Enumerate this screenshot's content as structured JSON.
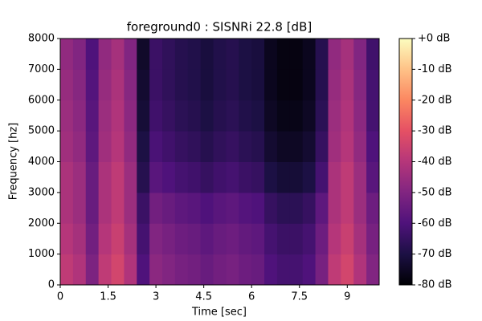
{
  "chart_data": {
    "type": "spectrogram",
    "title": "foreground0 : SISNRi 22.8 [dB]",
    "x_label": "Time [sec]",
    "y_label": "Frequency [hz]",
    "colormap": "magma",
    "time_bins": [
      0,
      0.4,
      0.8,
      1.2,
      1.6,
      2.0,
      2.4,
      2.8,
      3.2,
      3.6,
      4.0,
      4.4,
      4.8,
      5.2,
      5.6,
      6.0,
      6.4,
      6.8,
      7.2,
      7.6,
      8.0,
      8.4,
      8.8,
      9.2,
      9.6,
      10.0
    ],
    "freq_bins": [
      0,
      1000,
      2000,
      3000,
      4000,
      5000,
      6000,
      7000,
      8000
    ],
    "values": [
      [
        -38,
        -41,
        -51,
        -38,
        -34,
        -41,
        -60,
        -48,
        -50,
        -52,
        -53,
        -55,
        -53,
        -52,
        -54,
        -55,
        -60,
        -62,
        -62,
        -60,
        -52,
        -38,
        -34,
        -41,
        -50
      ],
      [
        -40,
        -43,
        -53,
        -40,
        -36,
        -43,
        -62,
        -50,
        -52,
        -54,
        -55,
        -57,
        -55,
        -54,
        -56,
        -57,
        -62,
        -64,
        -64,
        -62,
        -54,
        -40,
        -36,
        -43,
        -52
      ],
      [
        -42,
        -45,
        -55,
        -42,
        -38,
        -45,
        -64,
        -53,
        -55,
        -57,
        -58,
        -60,
        -58,
        -57,
        -59,
        -60,
        -65,
        -67,
        -67,
        -65,
        -57,
        -42,
        -38,
        -45,
        -54
      ],
      [
        -42,
        -45,
        -55,
        -42,
        -38,
        -45,
        -68,
        -58,
        -60,
        -62,
        -63,
        -65,
        -63,
        -62,
        -64,
        -65,
        -70,
        -72,
        -72,
        -70,
        -62,
        -42,
        -38,
        -45,
        -58
      ],
      [
        -44,
        -47,
        -57,
        -44,
        -40,
        -47,
        -70,
        -61,
        -63,
        -65,
        -66,
        -68,
        -66,
        -65,
        -67,
        -68,
        -73,
        -75,
        -75,
        -73,
        -65,
        -44,
        -40,
        -47,
        -60
      ],
      [
        -45,
        -48,
        -58,
        -45,
        -41,
        -48,
        -72,
        -63,
        -65,
        -67,
        -68,
        -70,
        -68,
        -67,
        -69,
        -70,
        -75,
        -77,
        -77,
        -75,
        -67,
        -45,
        -41,
        -48,
        -62
      ],
      [
        -46,
        -49,
        -59,
        -46,
        -42,
        -49,
        -73,
        -64,
        -66,
        -68,
        -69,
        -71,
        -69,
        -68,
        -70,
        -71,
        -76,
        -78,
        -78,
        -76,
        -68,
        -46,
        -42,
        -49,
        -62
      ],
      [
        -47,
        -50,
        -60,
        -47,
        -43,
        -50,
        -74,
        -64,
        -66,
        -68,
        -69,
        -71,
        -69,
        -68,
        -70,
        -71,
        -76,
        -78,
        -78,
        -76,
        -68,
        -47,
        -43,
        -50,
        -63
      ]
    ],
    "xlim": [
      0,
      10.0
    ],
    "xticks": [
      0,
      1.5,
      3,
      4.5,
      6,
      7.5,
      9
    ],
    "ylim": [
      0,
      8000
    ],
    "yticks": [
      0,
      1000,
      2000,
      3000,
      4000,
      5000,
      6000,
      7000,
      8000
    ],
    "clim": [
      -80,
      0
    ],
    "cticks": [
      {
        "value": 0,
        "label": "+0 dB"
      },
      {
        "value": -10,
        "label": "-10 dB"
      },
      {
        "value": -20,
        "label": "-20 dB"
      },
      {
        "value": -30,
        "label": "-30 dB"
      },
      {
        "value": -40,
        "label": "-40 dB"
      },
      {
        "value": -50,
        "label": "-50 dB"
      },
      {
        "value": -60,
        "label": "-60 dB"
      },
      {
        "value": -70,
        "label": "-70 dB"
      },
      {
        "value": -80,
        "label": "-80 dB"
      }
    ]
  }
}
